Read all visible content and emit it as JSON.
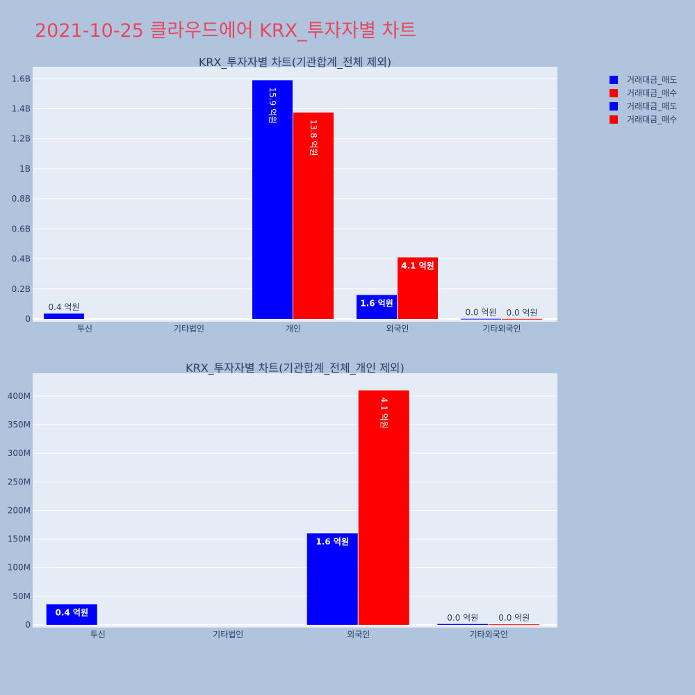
{
  "page": {
    "title": "2021-10-25 클라우드에어 KRX_투자자별 차트"
  },
  "legend": [
    {
      "name": "거래대금_매도",
      "color": "#0000ff"
    },
    {
      "name": "거래대금_매수",
      "color": "#ff0000"
    },
    {
      "name": "거래대금_매도",
      "color": "#0000ff"
    },
    {
      "name": "거래대금_매수",
      "color": "#ff0000"
    }
  ],
  "chart_data": [
    {
      "type": "bar",
      "title": "KRX_투자자별 차트(기관합계_전체 제외)",
      "categories": [
        "투신",
        "기타법인",
        "개인",
        "외국인",
        "기타외국인"
      ],
      "ylim": [
        0,
        1680000000
      ],
      "yticks": [
        0,
        200000000,
        400000000,
        600000000,
        800000000,
        1000000000,
        1200000000,
        1400000000,
        1600000000
      ],
      "yticklabels": [
        "0",
        "0.2B",
        "0.4B",
        "0.6B",
        "0.8B",
        "1B",
        "1.2B",
        "1.4B",
        "1.6B"
      ],
      "grid": true,
      "series": [
        {
          "name": "거래대금_매도",
          "color": "#0000ff",
          "values": [
            36000000,
            0,
            1590000000,
            160000000,
            1500000
          ],
          "labels": [
            "0.4 억원",
            "",
            "15.9 억원",
            "1.6 억원",
            "0.0 억원"
          ]
        },
        {
          "name": "거래대금_매수",
          "color": "#ff0000",
          "values": [
            0,
            0,
            1375000000,
            410000000,
            1000000
          ],
          "labels": [
            "",
            "",
            "13.8 억원",
            "4.1 억원",
            "0.0 억원"
          ]
        }
      ]
    },
    {
      "type": "bar",
      "title": "KRX_투자자별 차트(기관합계_전체_개인 제외)",
      "categories": [
        "투신",
        "기타법인",
        "외국인",
        "기타외국인"
      ],
      "ylim": [
        0,
        440000000
      ],
      "yticks": [
        0,
        50000000,
        100000000,
        150000000,
        200000000,
        250000000,
        300000000,
        350000000,
        400000000
      ],
      "yticklabels": [
        "0",
        "50M",
        "100M",
        "150M",
        "200M",
        "250M",
        "300M",
        "350M",
        "400M"
      ],
      "grid": true,
      "series": [
        {
          "name": "거래대금_매도",
          "color": "#0000ff",
          "values": [
            36000000,
            0,
            160000000,
            1500000
          ],
          "labels": [
            "0.4 억원",
            "",
            "1.6 억원",
            "0.0 억원"
          ]
        },
        {
          "name": "거래대금_매수",
          "color": "#ff0000",
          "values": [
            0,
            0,
            410000000,
            1000000
          ],
          "labels": [
            "",
            "",
            "4.1 억원",
            "0.0 억원"
          ]
        }
      ]
    }
  ]
}
